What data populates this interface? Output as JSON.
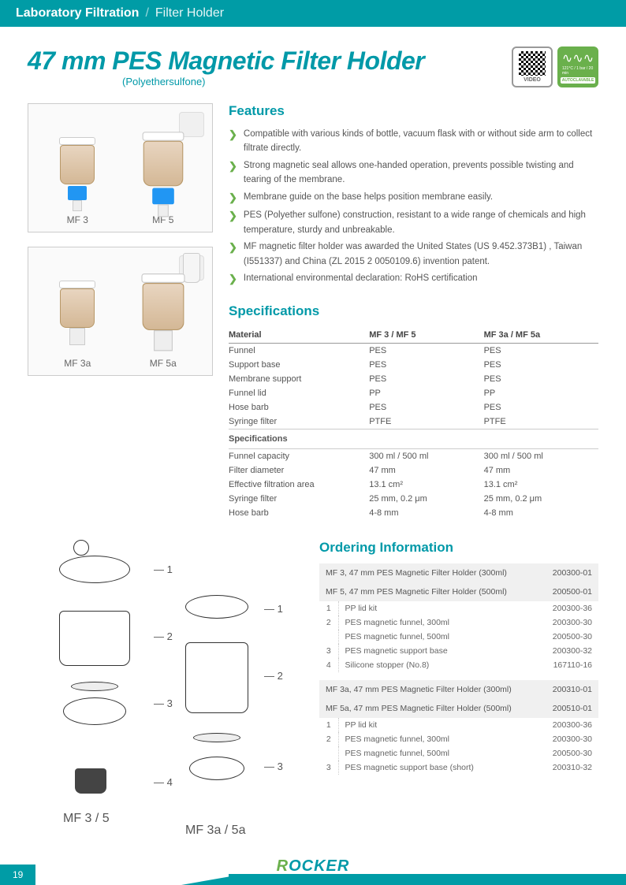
{
  "header": {
    "category": "Laboratory Filtration",
    "section": "Filter Holder"
  },
  "title": {
    "main": "47 mm PES Magnetic Filter Holder",
    "sub": "(Polyethersulfone)"
  },
  "badges": {
    "video": "VIDEO",
    "auto_top": "121°C / 1 bar / 20 min",
    "auto": "AUTOCLAVABLE"
  },
  "products": {
    "box1": [
      "MF 3",
      "MF 5"
    ],
    "box2": [
      "MF 3a",
      "MF 5a"
    ]
  },
  "features": {
    "title": "Features",
    "items": [
      "Compatible with various kinds of bottle, vacuum flask with or without side arm to collect filtrate directly.",
      "Strong magnetic seal allows one-handed operation, prevents possible twisting and tearing of the membrane.",
      "Membrane guide on the base helps position membrane easily.",
      "PES (Polyether sulfone) construction, resistant to a wide range of chemicals and high temperature, sturdy and unbreakable.",
      "MF magnetic filter holder was awarded the United States (US 9.452.373B1) , Taiwan (I551337) and China (ZL 2015 2 0050109.6) invention patent.",
      "International environmental declaration: RoHS certification"
    ]
  },
  "specs": {
    "title": "Specifications",
    "material_label": "Material",
    "col1": "MF 3 / MF 5",
    "col2": "MF 3a  /  MF 5a",
    "materials": [
      [
        "Funnel",
        "PES",
        "PES"
      ],
      [
        "Support base",
        "PES",
        "PES"
      ],
      [
        "Membrane support",
        "PES",
        "PES"
      ],
      [
        "Funnel lid",
        "PP",
        "PP"
      ],
      [
        "Hose barb",
        "PES",
        "PES"
      ],
      [
        "Syringe filter",
        "PTFE",
        "PTFE"
      ]
    ],
    "spec_label": "Specifications",
    "values": [
      [
        "Funnel capacity",
        "300 ml / 500 ml",
        "300 ml / 500 ml"
      ],
      [
        "Filter diameter",
        "47 mm",
        "47 mm"
      ],
      [
        "Effective filtration area",
        "13.1 cm²",
        "13.1 cm²"
      ],
      [
        "Syringe filter",
        "25 mm, 0.2 μm",
        "25 mm, 0.2 μm"
      ],
      [
        "Hose barb",
        "4-8 mm",
        "4-8 mm"
      ]
    ]
  },
  "diagram": {
    "label1": "MF 3 / 5",
    "label2": "MF 3a / 5a"
  },
  "ordering": {
    "title": "Ordering Information",
    "groups": [
      {
        "headers": [
          [
            "MF 3,  47 mm PES Magnetic Filter Holder (300ml)",
            "200300-01"
          ],
          [
            "MF 5,  47 mm PES Magnetic  Filter Holder (500ml)",
            "200500-01"
          ]
        ],
        "parts": [
          [
            "1",
            "PP lid kit",
            "200300-36"
          ],
          [
            "2",
            "PES magnetic funnel, 300ml",
            "200300-30"
          ],
          [
            "",
            "PES magnetic funnel, 500ml",
            "200500-30"
          ],
          [
            "3",
            "PES magnetic support base",
            "200300-32"
          ],
          [
            "4",
            "Silicone stopper (No.8)",
            "167110-16"
          ]
        ]
      },
      {
        "headers": [
          [
            "MF 3a,  47 mm PES Magnetic Filter Holder (300ml)",
            "200310-01"
          ],
          [
            "MF 5a,  47 mm PES Magnetic  Filter Holder (500ml)",
            "200510-01"
          ]
        ],
        "parts": [
          [
            "1",
            "PP lid kit",
            "200300-36"
          ],
          [
            "2",
            "PES magnetic funnel, 300ml",
            "200300-30"
          ],
          [
            "",
            "PES magnetic funnel, 500ml",
            "200500-30"
          ],
          [
            "3",
            "PES magnetic support base (short)",
            "200310-32"
          ]
        ]
      }
    ]
  },
  "footer": {
    "logo_r": "R",
    "logo_rest": "OCKER",
    "page": "19"
  }
}
